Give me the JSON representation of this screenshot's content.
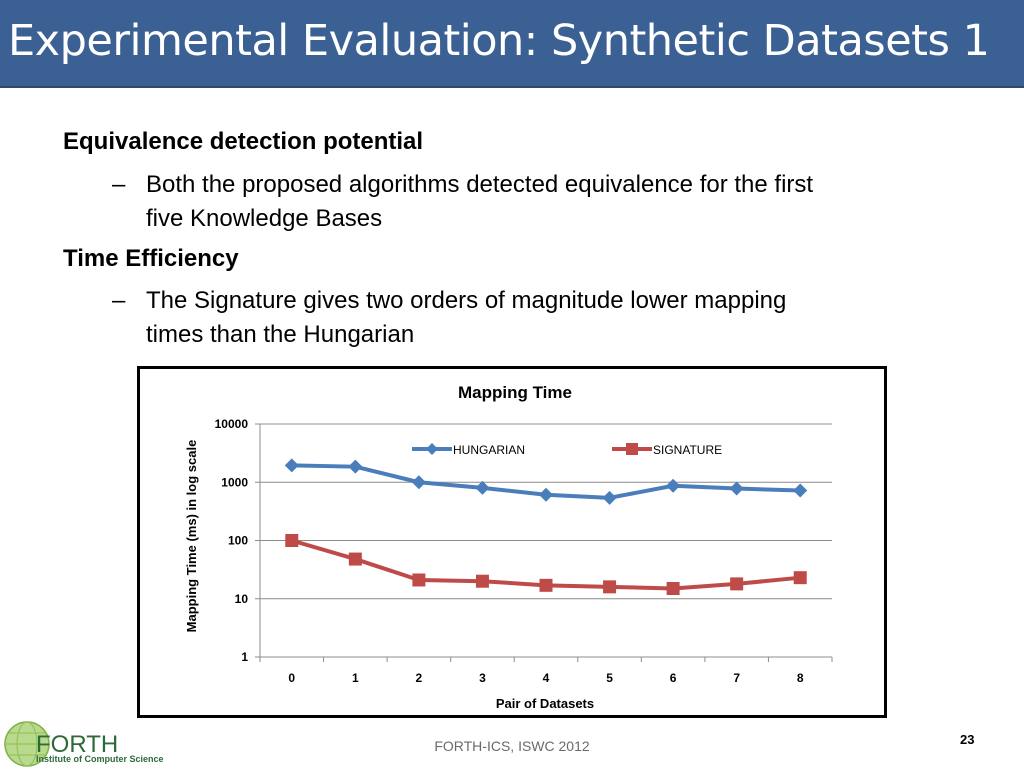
{
  "slide": {
    "title": "Experimental Evaluation: Synthetic Datasets 1",
    "heading1": "Equivalence detection potential",
    "bullet1_line1": "Both the proposed algorithms detected equivalence for the first",
    "bullet1_line2": "five Knowledge Bases",
    "heading2": "Time Efficiency",
    "bullet2_line1": "The Signature gives two orders of magnitude lower mapping",
    "bullet2_line2": "times than the Hungarian",
    "dash": "–",
    "footer": "FORTH-ICS, ISWC 2012",
    "page_number": "23",
    "logo_text": "FORTH",
    "logo_subtext": "Institute of Computer Science"
  },
  "chart_data": {
    "type": "line",
    "title": "Mapping Time",
    "xlabel": "Pair of Datasets",
    "ylabel": "Mapping Time (ms) in log scale",
    "yscale": "log",
    "ylim": [
      1,
      10000
    ],
    "ytick_labels": [
      "1",
      "10",
      "100",
      "1000",
      "10000"
    ],
    "categories": [
      "0",
      "1",
      "2",
      "3",
      "4",
      "5",
      "6",
      "7",
      "8"
    ],
    "legend_position": "top-right",
    "grid": true,
    "series": [
      {
        "name": "HUNGARIAN",
        "color": "#4a7ebb",
        "marker": "diamond",
        "values": [
          1950,
          1850,
          1000,
          800,
          610,
          540,
          870,
          780,
          720
        ]
      },
      {
        "name": "SIGNATURE",
        "color": "#be4b48",
        "marker": "square",
        "values": [
          100,
          48,
          21,
          20,
          17,
          16,
          15,
          18,
          23
        ]
      }
    ]
  }
}
